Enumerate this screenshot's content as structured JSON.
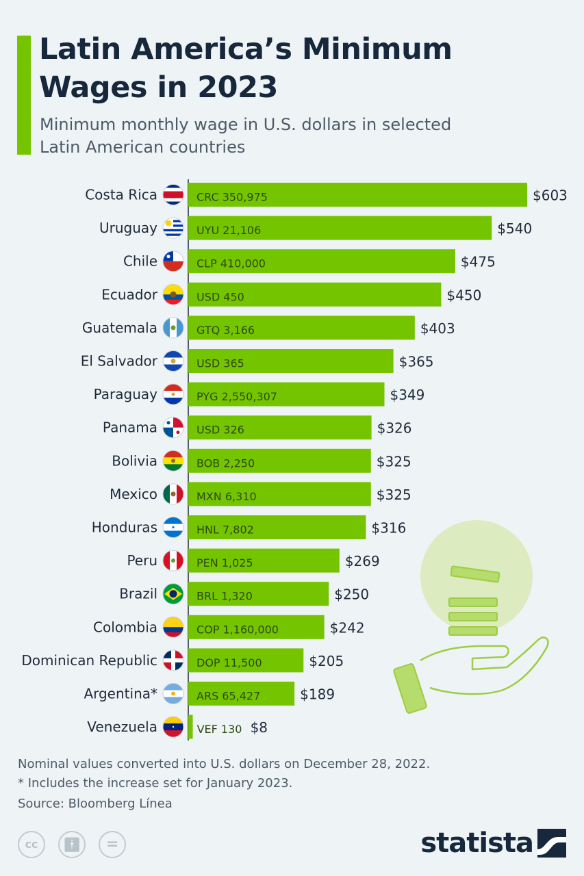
{
  "header": {
    "title_line1": "Latin America’s Minimum",
    "title_line2": "Wages in 2023",
    "subtitle_line1": "Minimum monthly wage in U.S. dollars in selected",
    "subtitle_line2": "Latin American countries"
  },
  "chart_data": {
    "type": "bar",
    "orientation": "horizontal",
    "title": "Latin America’s Minimum Wages in 2023",
    "subtitle": "Minimum monthly wage in U.S. dollars in selected Latin American countries",
    "categories": [
      "Costa Rica",
      "Uruguay",
      "Chile",
      "Ecuador",
      "Guatemala",
      "El Salvador",
      "Paraguay",
      "Panama",
      "Bolivia",
      "Mexico",
      "Honduras",
      "Peru",
      "Brazil",
      "Colombia",
      "Dominican Republic",
      "Argentina*",
      "Venezuela"
    ],
    "values": [
      603,
      540,
      475,
      450,
      403,
      365,
      349,
      326,
      325,
      325,
      316,
      269,
      250,
      242,
      205,
      189,
      8
    ],
    "value_labels": [
      "$603",
      "$540",
      "$475",
      "$450",
      "$403",
      "$365",
      "$349",
      "$326",
      "$325",
      "$325",
      "$316",
      "$269",
      "$250",
      "$242",
      "$205",
      "$189",
      "$8"
    ],
    "local_currency_labels": [
      "CRC 350,975",
      "UYU 21,106",
      "CLP 410,000",
      "USD 450",
      "GTQ 3,166",
      "USD 365",
      "PYG 2,550,307",
      "USD 326",
      "BOB 2,250",
      "MXN 6,310",
      "HNL 7,802",
      "PEN 1,025",
      "BRL 1,320",
      "COP 1,160,000",
      "DOP 11,500",
      "ARS 65,427",
      "VEF 130"
    ],
    "bar_color": "#74c500",
    "xlim": [
      0,
      603
    ]
  },
  "flags": [
    "costa-rica-flag-icon",
    "uruguay-flag-icon",
    "chile-flag-icon",
    "ecuador-flag-icon",
    "guatemala-flag-icon",
    "el-salvador-flag-icon",
    "paraguay-flag-icon",
    "panama-flag-icon",
    "bolivia-flag-icon",
    "mexico-flag-icon",
    "honduras-flag-icon",
    "peru-flag-icon",
    "brazil-flag-icon",
    "colombia-flag-icon",
    "dominican-republic-flag-icon",
    "argentina-flag-icon",
    "venezuela-flag-icon"
  ],
  "footer": {
    "note1": "Nominal values converted into U.S. dollars on December 28, 2022.",
    "note2": "* Includes the increase set for January 2023.",
    "source": "Source: Bloomberg Línea",
    "logo": "statista"
  }
}
